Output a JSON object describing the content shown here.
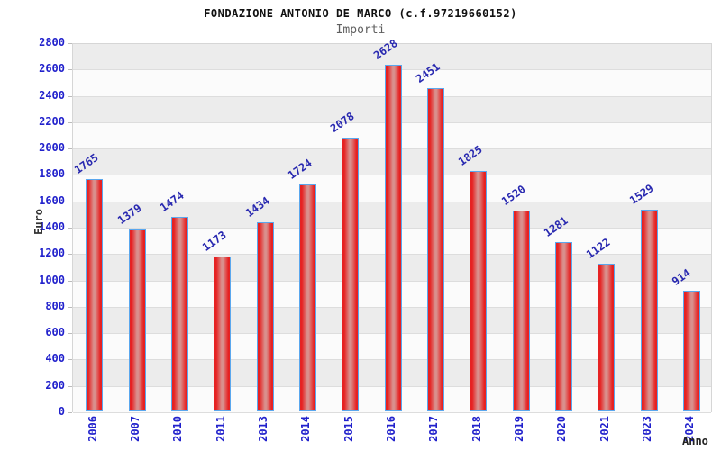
{
  "title": "FONDAZIONE ANTONIO DE MARCO (c.f.97219660152)",
  "subtitle": "Importi",
  "chart_data": {
    "type": "bar",
    "categories": [
      "2006",
      "2007",
      "2010",
      "2011",
      "2013",
      "2014",
      "2015",
      "2016",
      "2017",
      "2018",
      "2019",
      "2020",
      "2021",
      "2023",
      "2024"
    ],
    "values": [
      1765,
      1379,
      1474,
      1173,
      1434,
      1724,
      2078,
      2628,
      2451,
      1825,
      1520,
      1281,
      1122,
      1529,
      914
    ],
    "title": "FONDAZIONE ANTONIO DE MARCO (c.f.97219660152)",
    "subtitle": "Importi",
    "xlabel": "Anno",
    "ylabel": "Euro",
    "ylim": [
      0,
      2800
    ],
    "ytick_step": 200,
    "legend": "none",
    "grid": "alternating horizontal bands with light gridlines",
    "bar_value_labels_rotated": true,
    "x_tick_labels_rotated_vertical": true,
    "colors": {
      "bar_fill_edge": "#e62222",
      "bar_fill_center": "#d9908d",
      "bar_border": "#5aa7ee",
      "tick_label": "#2121cc",
      "value_label": "#2828b0",
      "band_gray": "#ececec",
      "band_white": "#fbfbfb",
      "gridline": "#dddddd",
      "axis_title": "#333333",
      "title_color": "#111111",
      "subtitle_color": "#5f5f5f"
    }
  }
}
